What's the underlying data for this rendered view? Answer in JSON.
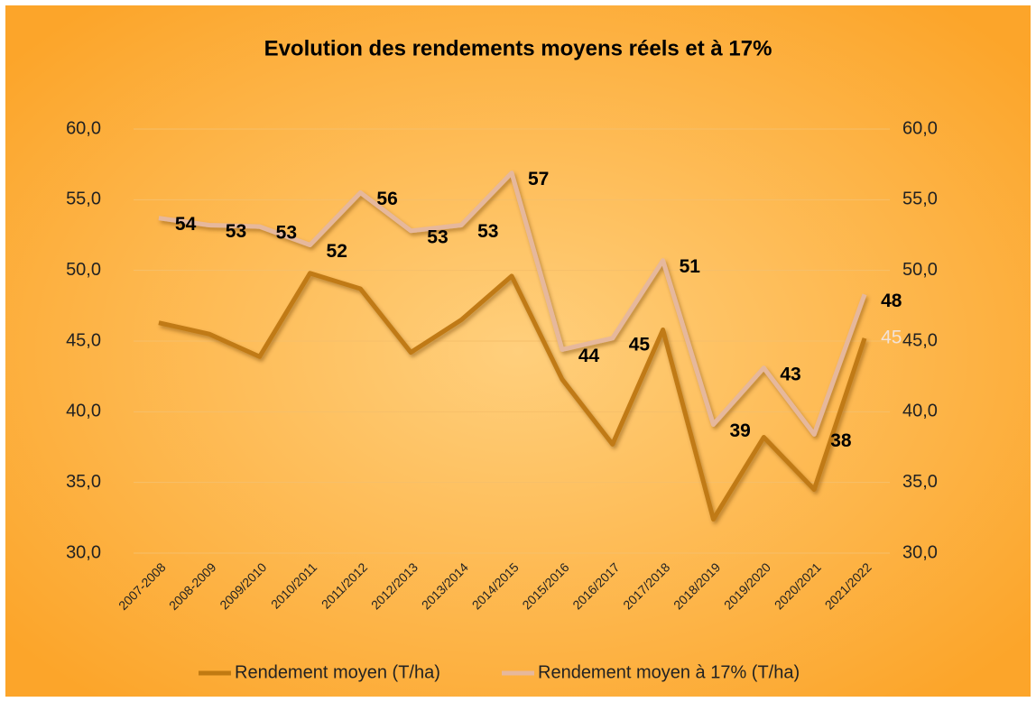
{
  "chart_data": {
    "type": "line",
    "title": "Evolution des rendements moyens réels et à 17%",
    "categories": [
      "2007-2008",
      "2008-2009",
      "2009/2010",
      "2010/2011",
      "2011/2012",
      "2012/2013",
      "2013/2014",
      "2014/2015",
      "2015/2016",
      "2016/2017",
      "2017/2018",
      "2018/2019",
      "2019/2020",
      "2020/2021",
      "2021/2022"
    ],
    "series": [
      {
        "name": "Rendement moyen (T/ha)",
        "color": "#c07a12",
        "values": [
          46.3,
          45.5,
          43.9,
          49.8,
          48.7,
          44.2,
          46.5,
          49.6,
          42.3,
          37.7,
          45.8,
          32.4,
          38.2,
          34.5,
          45.2
        ],
        "value_labels": [
          null,
          null,
          null,
          null,
          null,
          null,
          null,
          null,
          null,
          null,
          null,
          null,
          null,
          null,
          "45"
        ]
      },
      {
        "name": "Rendement moyen à 17% (T/ha)",
        "color": "#e6b89c",
        "axis": "y2",
        "values": [
          53.7,
          53.2,
          53.1,
          51.8,
          55.5,
          52.8,
          53.2,
          56.9,
          44.4,
          45.2,
          50.7,
          39.1,
          43.1,
          38.4,
          48.3
        ],
        "value_labels": [
          "54",
          "53",
          "53",
          "52",
          "56",
          "53",
          "53",
          "57",
          "44",
          "45",
          "51",
          "39",
          "43",
          "38",
          "48"
        ]
      }
    ],
    "ylim": [
      30,
      60
    ],
    "yticks": [
      {
        "value": 30,
        "label": "30,0"
      },
      {
        "value": 35,
        "label": "35,0"
      },
      {
        "value": 40,
        "label": "40,0"
      },
      {
        "value": 45,
        "label": "45,0"
      },
      {
        "value": 50,
        "label": "50,0"
      },
      {
        "value": 55,
        "label": "55,0"
      },
      {
        "value": 60,
        "label": "60,0"
      }
    ],
    "y2lim": [
      30,
      60
    ],
    "y2ticks": [
      {
        "value": 30,
        "label": "30,0"
      },
      {
        "value": 35,
        "label": "35,0"
      },
      {
        "value": 40,
        "label": "40,0"
      },
      {
        "value": 45,
        "label": "45,0"
      },
      {
        "value": 50,
        "label": "50,0"
      },
      {
        "value": 55,
        "label": "55,0"
      },
      {
        "value": 60,
        "label": "60,0"
      }
    ],
    "grid": true,
    "legend": "bottom"
  }
}
